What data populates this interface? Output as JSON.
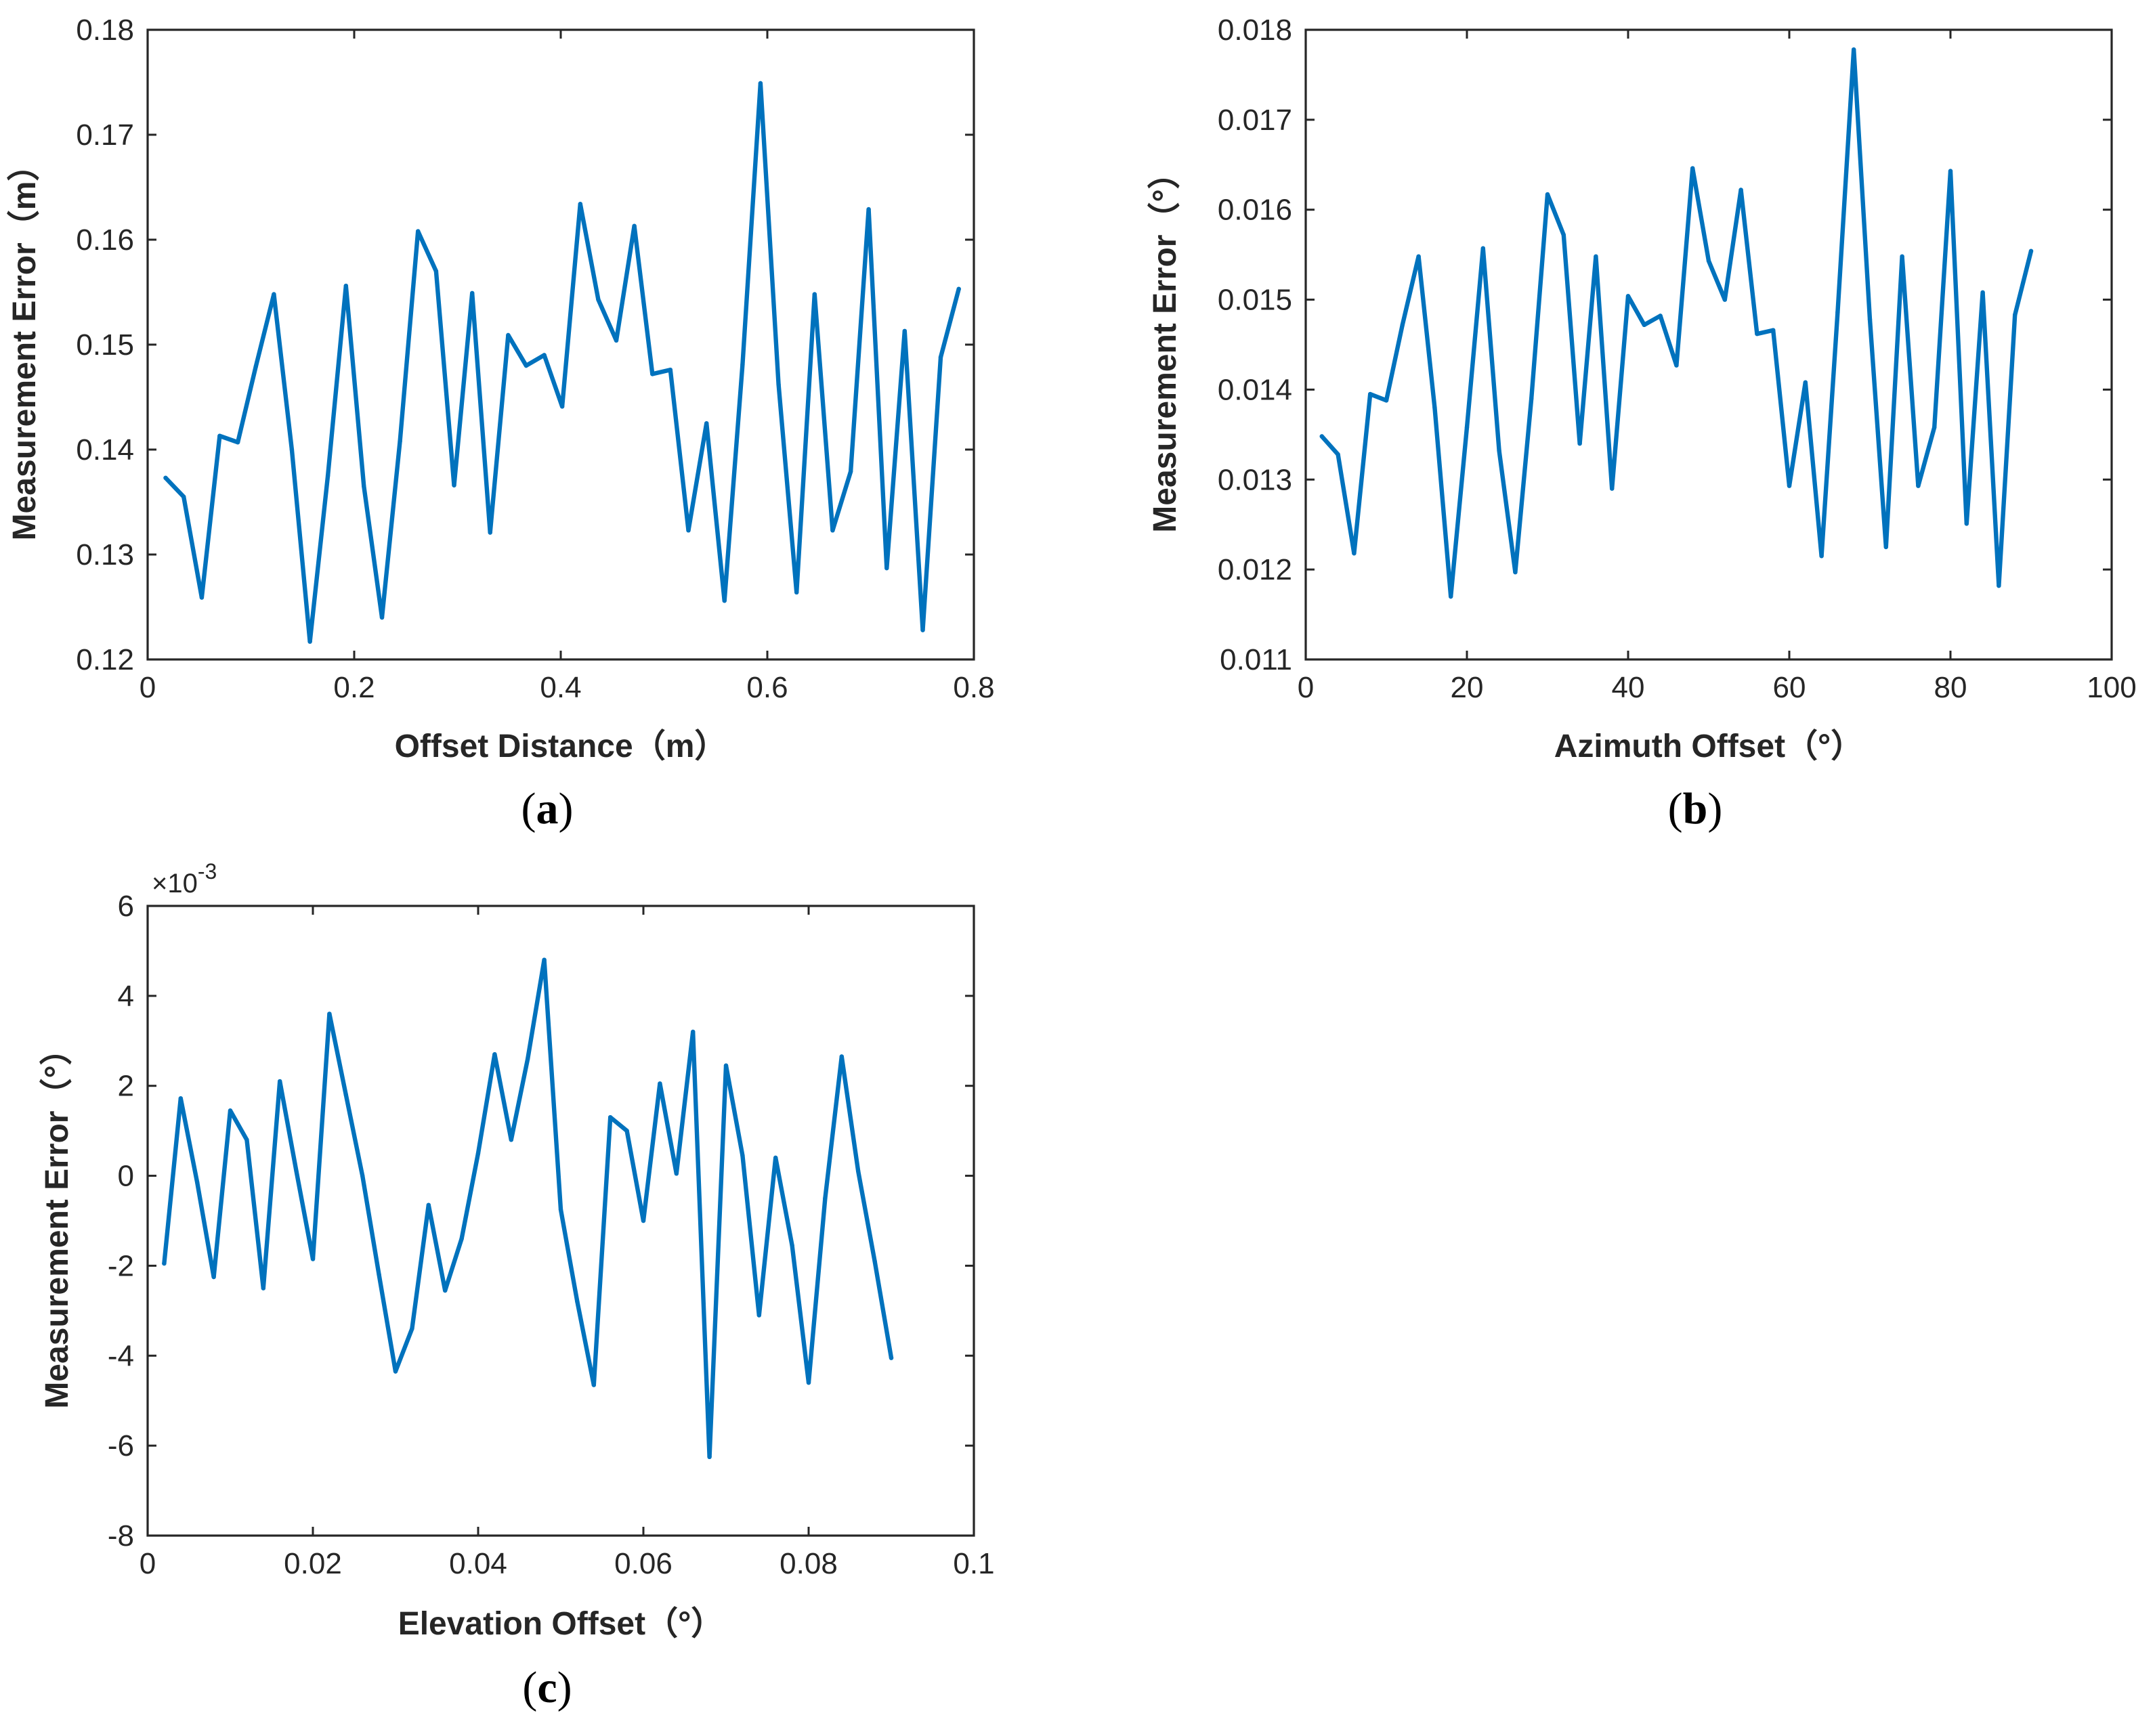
{
  "colors": {
    "series": "#0072BD",
    "axis": "#262626"
  },
  "chart_data": [
    {
      "id": "a",
      "type": "line",
      "panel_label": "a",
      "title": "",
      "xlabel": "Offset Distance（m）",
      "ylabel": "Measurement Error（m）",
      "xlim": [
        0,
        0.8
      ],
      "ylim": [
        0.12,
        0.18
      ],
      "xticks": [
        0,
        0.2,
        0.4,
        0.6,
        0.8
      ],
      "xtick_labels": [
        "0",
        "0.2",
        "0.4",
        "0.6",
        "0.8"
      ],
      "yticks": [
        0.12,
        0.13,
        0.14,
        0.15,
        0.16,
        0.17,
        0.18
      ],
      "ytick_labels": [
        "0.12",
        "0.13",
        "0.14",
        "0.15",
        "0.16",
        "0.17",
        "0.18"
      ],
      "exponent_label": "",
      "grid": false,
      "series": [
        {
          "name": "Measurement Error",
          "x": [
            0.0174,
            0.0349,
            0.0524,
            0.0698,
            0.0873,
            0.1047,
            0.1222,
            0.1396,
            0.1571,
            0.1745,
            0.192,
            0.2094,
            0.2269,
            0.2443,
            0.2618,
            0.2793,
            0.2967,
            0.3142,
            0.3316,
            0.3491,
            0.3665,
            0.384,
            0.4014,
            0.4189,
            0.4363,
            0.4538,
            0.4712,
            0.4887,
            0.5061,
            0.5236,
            0.5411,
            0.5585,
            0.576,
            0.5934,
            0.6109,
            0.6283,
            0.6458,
            0.6632,
            0.6807,
            0.6981,
            0.7156,
            0.733,
            0.7505,
            0.7679,
            0.7854
          ],
          "y": [
            0.1373,
            0.1355,
            0.1259,
            0.1413,
            0.1407,
            0.1479,
            0.1548,
            0.14,
            0.1217,
            0.1375,
            0.1556,
            0.1365,
            0.124,
            0.1408,
            0.1608,
            0.157,
            0.1366,
            0.1549,
            0.1321,
            0.1509,
            0.148,
            0.149,
            0.1441,
            0.1634,
            0.1543,
            0.1504,
            0.1613,
            0.1472,
            0.1476,
            0.1323,
            0.1425,
            0.1256,
            0.1481,
            0.1749,
            0.1462,
            0.1264,
            0.1548,
            0.1323,
            0.1379,
            0.1629,
            0.1287,
            0.1513,
            0.1228,
            0.1488,
            0.1553
          ]
        }
      ]
    },
    {
      "id": "b",
      "type": "line",
      "panel_label": "b",
      "title": "",
      "xlabel": "Azimuth Offset（°）",
      "ylabel": "Measurement Error（°）",
      "xlim": [
        0,
        100
      ],
      "ylim": [
        0.011,
        0.018
      ],
      "xticks": [
        0,
        20,
        40,
        60,
        80,
        100
      ],
      "xtick_labels": [
        "0",
        "20",
        "40",
        "60",
        "80",
        "100"
      ],
      "yticks": [
        0.011,
        0.012,
        0.013,
        0.014,
        0.015,
        0.016,
        0.017,
        0.018
      ],
      "ytick_labels": [
        "0.011",
        "0.012",
        "0.013",
        "0.014",
        "0.015",
        "0.016",
        "0.017",
        "0.018"
      ],
      "exponent_label": "",
      "grid": false,
      "series": [
        {
          "name": "Measurement Error",
          "x": [
            2,
            4,
            6,
            8,
            10,
            12,
            14,
            16,
            18,
            20,
            22,
            24,
            26,
            28,
            30,
            32,
            34,
            36,
            38,
            40,
            42,
            44,
            46,
            48,
            50,
            52,
            54,
            56,
            58,
            60,
            62,
            64,
            66,
            68,
            70,
            72,
            74,
            76,
            78,
            80,
            82,
            84,
            86,
            88,
            90
          ],
          "y": [
            0.01348,
            0.01328,
            0.01218,
            0.01395,
            0.01388,
            0.01472,
            0.01548,
            0.0138,
            0.0117,
            0.01358,
            0.01557,
            0.01332,
            0.01197,
            0.0139,
            0.01617,
            0.01572,
            0.0134,
            0.01548,
            0.0129,
            0.01504,
            0.01472,
            0.01482,
            0.01427,
            0.01646,
            0.01543,
            0.015,
            0.01622,
            0.01462,
            0.01466,
            0.01293,
            0.01408,
            0.01215,
            0.01486,
            0.01778,
            0.01478,
            0.01225,
            0.01548,
            0.01293,
            0.01358,
            0.01643,
            0.01251,
            0.01508,
            0.01182,
            0.01483,
            0.01554
          ]
        }
      ]
    },
    {
      "id": "c",
      "type": "line",
      "panel_label": "c",
      "title": "",
      "xlabel": "Elevation Offset（°）",
      "ylabel": "Measurement Error（°）",
      "xlim": [
        0,
        0.1
      ],
      "ylim": [
        -8,
        6
      ],
      "xticks": [
        0,
        0.02,
        0.04,
        0.06,
        0.08,
        0.1
      ],
      "xtick_labels": [
        "0",
        "0.02",
        "0.04",
        "0.06",
        "0.08",
        "0.1"
      ],
      "yticks": [
        -8,
        -6,
        -4,
        -2,
        0,
        2,
        4,
        6
      ],
      "ytick_labels": [
        "-8",
        "-6",
        "-4",
        "-2",
        "0",
        "2",
        "4",
        "6"
      ],
      "exponent_label": "×10",
      "exponent_power": "-3",
      "y_scale_note": "y values in units of 1e-3",
      "grid": false,
      "series": [
        {
          "name": "Measurement Error",
          "x": [
            0.002,
            0.004,
            0.006,
            0.008,
            0.01,
            0.012,
            0.014,
            0.016,
            0.018,
            0.02,
            0.022,
            0.024,
            0.026,
            0.028,
            0.03,
            0.032,
            0.034,
            0.036,
            0.038,
            0.04,
            0.042,
            0.044,
            0.046,
            0.048,
            0.05,
            0.052,
            0.054,
            0.056,
            0.058,
            0.06,
            0.062,
            0.064,
            0.066,
            0.068,
            0.07,
            0.072,
            0.074,
            0.076,
            0.078,
            0.08,
            0.082,
            0.084,
            0.086,
            0.088,
            0.09
          ],
          "y": [
            -1.95,
            1.72,
            -0.15,
            -2.25,
            1.45,
            0.8,
            -2.5,
            2.1,
            0.1,
            -1.85,
            3.6,
            1.8,
            0.0,
            -2.2,
            -4.35,
            -3.4,
            -0.65,
            -2.55,
            -1.4,
            0.5,
            2.7,
            0.8,
            2.6,
            4.8,
            -0.75,
            -2.8,
            -4.65,
            1.3,
            1.0,
            -1.0,
            2.05,
            0.05,
            3.2,
            -6.25,
            2.45,
            0.45,
            -3.1,
            0.4,
            -1.55,
            -4.6,
            -0.5,
            2.65,
            0.1,
            -1.9,
            -4.05
          ]
        }
      ]
    }
  ]
}
